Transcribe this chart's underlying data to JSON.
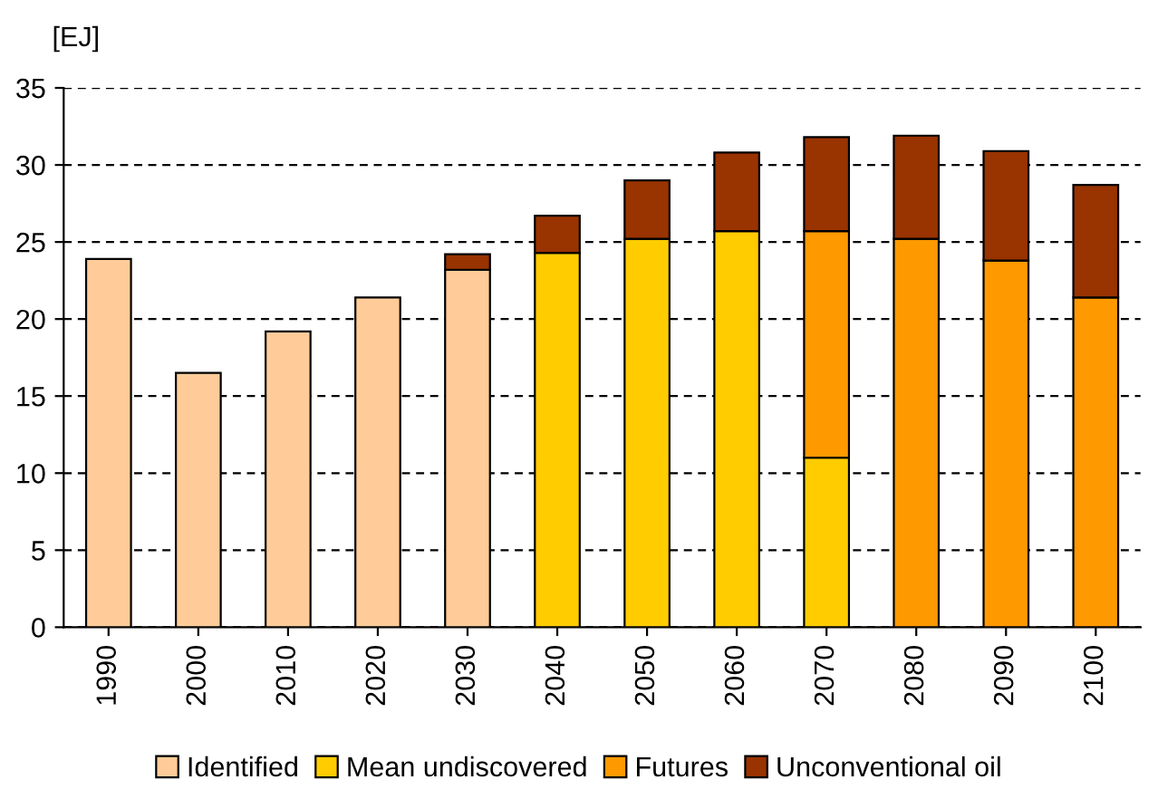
{
  "chart_data": {
    "type": "bar",
    "stacked": true,
    "ylabel": "[EJ]",
    "categories": [
      "1990",
      "2000",
      "2010",
      "2020",
      "2030",
      "2040",
      "2050",
      "2060",
      "2070",
      "2080",
      "2090",
      "2100"
    ],
    "series": [
      {
        "name": "Identified",
        "color": "#ffcc99",
        "values": [
          23.9,
          16.5,
          19.2,
          21.4,
          23.2,
          null,
          null,
          null,
          null,
          null,
          null,
          null
        ]
      },
      {
        "name": "Mean undiscovered",
        "color": "#ffcc00",
        "values": [
          null,
          null,
          null,
          null,
          null,
          24.3,
          25.2,
          25.7,
          11.0,
          null,
          null,
          null
        ]
      },
      {
        "name": "Futures",
        "color": "#ff9900",
        "values": [
          null,
          null,
          null,
          null,
          null,
          null,
          null,
          null,
          14.7,
          25.2,
          23.8,
          21.4
        ]
      },
      {
        "name": "Unconventional oil",
        "color": "#993300",
        "values": [
          null,
          null,
          null,
          null,
          1.0,
          2.4,
          3.8,
          5.1,
          6.1,
          6.7,
          7.1,
          7.3
        ]
      }
    ],
    "ylim": [
      0,
      35
    ],
    "yticks": [
      0,
      5,
      10,
      15,
      20,
      25,
      30,
      35
    ],
    "grid": "y",
    "legend": "bottom"
  }
}
